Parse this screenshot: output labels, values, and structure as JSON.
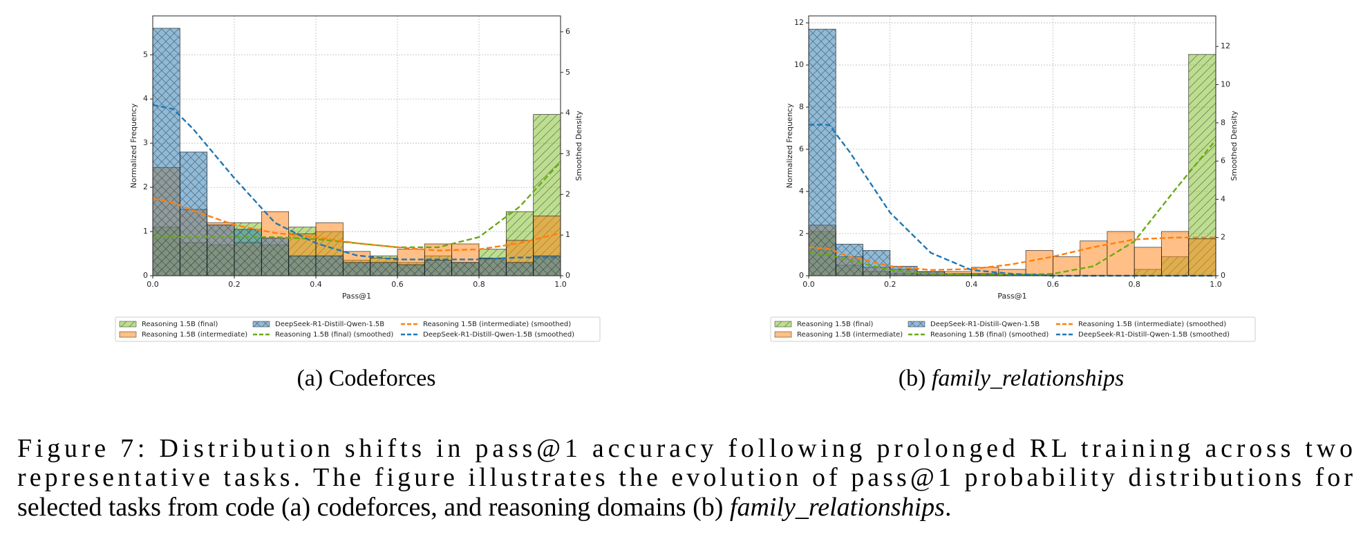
{
  "chart_data": [
    {
      "type": "histogram",
      "xlabel": "Pass@1",
      "ylabel": "Normalized Frequency",
      "y2label": "Smoothed Density",
      "bins": [
        0,
        0.0667,
        0.1333,
        0.2,
        0.2667,
        0.3333,
        0.4,
        0.4667,
        0.5333,
        0.6,
        0.6667,
        0.7333,
        0.8,
        0.8667,
        0.9333,
        1
      ],
      "xlim": [
        0,
        1
      ],
      "xticks": [
        {
          "value": 0,
          "label": "0.0"
        },
        0.2,
        0.4,
        0.6,
        0.8,
        {
          "value": 1,
          "label": "1.0"
        }
      ],
      "ylim": [
        0,
        5.88
      ],
      "yticks": [
        0,
        1,
        2,
        3,
        4,
        5
      ],
      "y2lim": [
        0,
        6.39
      ],
      "y2ticks": [
        0,
        1,
        2,
        3,
        4,
        5,
        6
      ],
      "grid": true,
      "alpha": 0.5,
      "series": [
        {
          "name": "Reasoning 1.5B (final)",
          "color": "#7cbd1f",
          "hatch": "/",
          "values": [
            1.1,
            0.75,
            0.7,
            1.2,
            0.7,
            1.1,
            1.0,
            0.35,
            0.45,
            0.3,
            0.45,
            0.3,
            0.6,
            1.45,
            3.65
          ]
        },
        {
          "name": "Reasoning 1.5B (intermediate)",
          "color": "#ff7f0e",
          "values": [
            2.45,
            1.5,
            1.2,
            0.75,
            1.45,
            0.95,
            1.2,
            0.55,
            0.4,
            0.6,
            0.72,
            0.72,
            0.4,
            0.8,
            1.35
          ]
        },
        {
          "name": "DeepSeek-R1-Distill-Qwen-1.5B",
          "color": "#1f77b4",
          "hatch": "x",
          "values": [
            5.6,
            2.8,
            1.15,
            1.05,
            0.85,
            0.45,
            0.45,
            0.3,
            0.3,
            0.25,
            0.35,
            0.3,
            0.4,
            0.3,
            0.45
          ]
        }
      ],
      "line_x": [
        0,
        0.05,
        0.1,
        0.2,
        0.3,
        0.4,
        0.5,
        0.6,
        0.7,
        0.8,
        0.9,
        1.0
      ],
      "line_series": [
        {
          "name": "Reasoning 1.5B (final) (smoothed)",
          "color": "#6aaa12",
          "axis": "y2",
          "values": [
            0.95,
            0.95,
            0.95,
            0.95,
            0.95,
            0.9,
            0.8,
            0.7,
            0.7,
            0.95,
            1.7,
            2.8
          ]
        },
        {
          "name": "Reasoning 1.5B (intermediate) (smoothed)",
          "color": "#ff7f0e",
          "axis": "y2",
          "values": [
            1.9,
            1.8,
            1.6,
            1.25,
            1.05,
            0.95,
            0.8,
            0.7,
            0.62,
            0.65,
            0.8,
            1.05
          ]
        },
        {
          "name": "DeepSeek-R1-Distill-Qwen-1.5B (smoothed)",
          "color": "#1f77b4",
          "axis": "y2",
          "values": [
            4.2,
            4.1,
            3.6,
            2.4,
            1.3,
            0.8,
            0.5,
            0.4,
            0.4,
            0.4,
            0.45,
            0.45
          ]
        }
      ],
      "subcaption_label": "(a)",
      "subcaption_text": "Codeforces"
    },
    {
      "type": "histogram",
      "xlabel": "Pass@1",
      "ylabel": "Normalized Frequency",
      "y2label": "Smoothed Density",
      "bins": [
        0,
        0.0667,
        0.1333,
        0.2,
        0.2667,
        0.3333,
        0.4,
        0.4667,
        0.5333,
        0.6,
        0.6667,
        0.7333,
        0.8,
        0.8667,
        0.9333,
        1
      ],
      "xlim": [
        0,
        1
      ],
      "xticks": [
        {
          "value": 0,
          "label": "0.0"
        },
        0.2,
        0.4,
        0.6,
        0.8,
        {
          "value": 1,
          "label": "1.0"
        }
      ],
      "ylim": [
        0,
        12.33
      ],
      "yticks": [
        0,
        2,
        4,
        6,
        8,
        10,
        12
      ],
      "y2lim": [
        0,
        13.6
      ],
      "y2ticks": [
        0,
        2,
        4,
        6,
        8,
        10,
        12
      ],
      "grid": true,
      "alpha": 0.5,
      "series": [
        {
          "name": "Reasoning 1.5B (final)",
          "color": "#7cbd1f",
          "hatch": "/",
          "values": [
            2.1,
            0.5,
            0.2,
            0.1,
            0.05,
            0,
            0.05,
            0.05,
            0,
            0,
            0,
            0,
            0.3,
            0.9,
            10.5
          ]
        },
        {
          "name": "Reasoning 1.5B (intermediate)",
          "color": "#ff7f0e",
          "values": [
            2.4,
            0.9,
            0.4,
            0.3,
            0.2,
            0.2,
            0.4,
            0.3,
            1.2,
            0.9,
            1.65,
            2.1,
            1.35,
            2.1,
            1.75
          ]
        },
        {
          "name": "DeepSeek-R1-Distill-Qwen-1.5B",
          "color": "#1f77b4",
          "hatch": "x",
          "values": [
            11.7,
            1.5,
            1.2,
            0.45,
            0.2,
            0.1,
            0.1,
            0.05,
            0.05,
            0,
            0,
            0,
            0,
            0,
            0
          ]
        }
      ],
      "line_x": [
        0,
        0.05,
        0.1,
        0.2,
        0.3,
        0.4,
        0.5,
        0.6,
        0.7,
        0.8,
        0.9,
        1.0
      ],
      "line_series": [
        {
          "name": "Reasoning 1.5B (final) (smoothed)",
          "color": "#6aaa12",
          "axis": "y2",
          "values": [
            1.2,
            1.1,
            0.8,
            0.3,
            0.1,
            0.05,
            0.05,
            0.1,
            0.5,
            1.8,
            4.5,
            7.1
          ]
        },
        {
          "name": "Reasoning 1.5B (intermediate) (smoothed)",
          "color": "#ff7f0e",
          "axis": "y2",
          "values": [
            1.5,
            1.4,
            1.0,
            0.5,
            0.3,
            0.35,
            0.6,
            1.0,
            1.5,
            1.9,
            2.0,
            2.0
          ]
        },
        {
          "name": "DeepSeek-R1-Distill-Qwen-1.5B (smoothed)",
          "color": "#1f77b4",
          "axis": "y2",
          "values": [
            7.9,
            7.9,
            6.5,
            3.3,
            1.2,
            0.3,
            0.1,
            0,
            0,
            0,
            0,
            0
          ]
        }
      ],
      "subcaption_label": "(b)",
      "subcaption_text": "family_relationships",
      "subcaption_italic": true
    }
  ],
  "caption": {
    "lines": [
      [
        {
          "text": "Figure 7:  Distribution shifts in pass@1 accuracy following prolonged RL training across two"
        }
      ],
      [
        {
          "text": "representative tasks.  The figure illustrates the evolution of pass@1 probability distributions for"
        }
      ],
      [
        {
          "text": "selected tasks from code (a) codeforces, and reasoning domains (b) "
        },
        {
          "text": "family_relationships",
          "italic": true
        },
        {
          "text": "."
        }
      ]
    ]
  }
}
